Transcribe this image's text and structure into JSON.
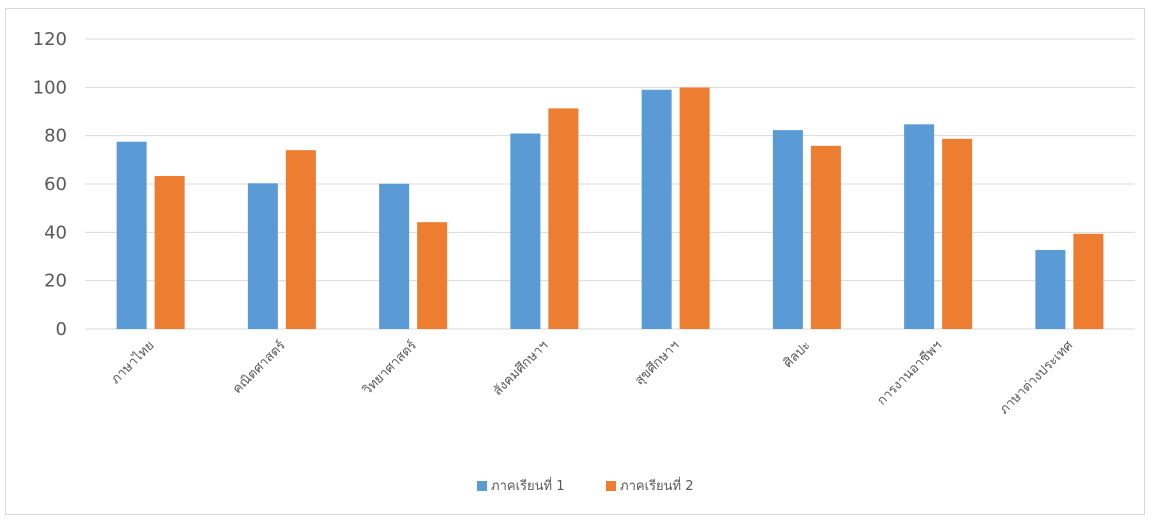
{
  "chart_data": {
    "type": "bar",
    "title": "",
    "xlabel": "",
    "ylabel": "",
    "categories": [
      "ภาษาไทย",
      "คณิตศาสตร์",
      "วิทยาศาสตร์",
      "สังคมศึกษาฯ",
      "สุขศึกษาฯ",
      "ศิลปะ",
      "การงานอาชีพฯ",
      "ภาษาต่างประเทศ"
    ],
    "series": [
      {
        "name": "ภาคเรียนที่ 1",
        "color": "#5b9bd5",
        "values": [
          77.5,
          60.3,
          60.1,
          80.9,
          99.0,
          82.3,
          84.7,
          32.7
        ]
      },
      {
        "name": "ภาคเรียนที่ 2",
        "color": "#ed7d31",
        "values": [
          63.3,
          74.0,
          44.2,
          91.3,
          99.9,
          75.8,
          78.7,
          39.4
        ]
      }
    ],
    "ylim": [
      0,
      120
    ],
    "yticks": [
      "0",
      "20",
      "40",
      "60",
      "80",
      "100",
      "120"
    ],
    "grid": true,
    "legend": "bottom"
  }
}
